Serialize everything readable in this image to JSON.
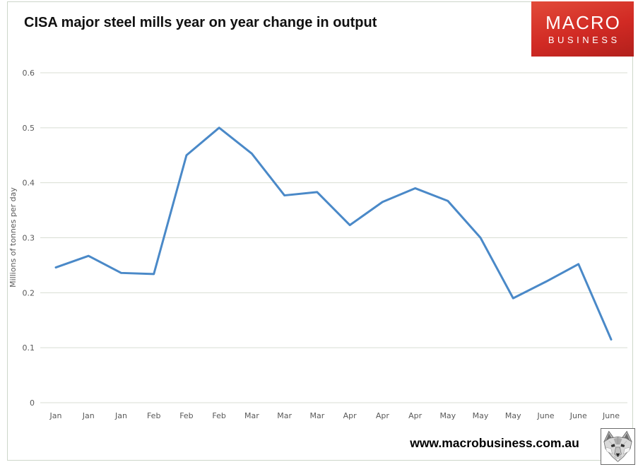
{
  "page": {
    "title": "CISA major steel mills year on year change in output",
    "footer_url": "www.macrobusiness.com.au"
  },
  "logo": {
    "line1": "MACRO",
    "line2": "BUSINESS",
    "bg_color": "#d12a24",
    "text_color": "#ffffff"
  },
  "chart_data": {
    "type": "line",
    "title": "CISA major steel mills year on year change in output",
    "xlabel": "",
    "ylabel": "Millions of tonnes per day",
    "categories": [
      "Jan",
      "Jan",
      "Jan",
      "Feb",
      "Feb",
      "Feb",
      "Mar",
      "Mar",
      "Mar",
      "Apr",
      "Apr",
      "Apr",
      "May",
      "May",
      "May",
      "June",
      "June",
      "June"
    ],
    "series": [
      {
        "name": "CISA major steel mills YoY change in output",
        "values": [
          0.246,
          0.267,
          0.236,
          0.234,
          0.45,
          0.5,
          0.453,
          0.377,
          0.383,
          0.323,
          0.365,
          0.39,
          0.367,
          0.3,
          0.19,
          0.22,
          0.252,
          0.115
        ]
      }
    ],
    "ylim": [
      0,
      0.6
    ],
    "ytick_step": 0.1,
    "ytick_labels": [
      "0",
      "0.1",
      "0.2",
      "0.3",
      "0.4",
      "0.5",
      "0.6"
    ],
    "grid": true,
    "legend_position": "none",
    "line_color": "#4a89c8",
    "grid_color": "#d8ded3",
    "tick_color": "#595959"
  }
}
